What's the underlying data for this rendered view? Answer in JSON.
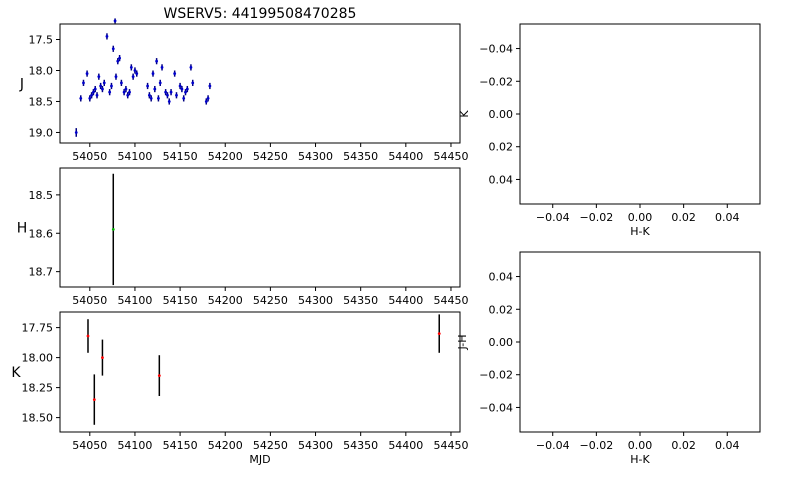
{
  "title": "WSERV5: 44199508470285",
  "chart_data": [
    {
      "id": "J",
      "type": "scatter",
      "ylabel": "J",
      "xlabel": "",
      "y_inverted": true,
      "xlim": [
        54017,
        54460
      ],
      "ylim": [
        19.17,
        17.25
      ],
      "xticks": [
        54050,
        54100,
        54150,
        54200,
        54250,
        54300,
        54350,
        54400,
        54450
      ],
      "yticks": [
        17.5,
        18.0,
        18.5,
        19.0
      ],
      "marker_color": "#0000cc",
      "errbar_color": "#000080",
      "points": [
        {
          "x": 54035,
          "y": 19.0,
          "e": 0.07
        },
        {
          "x": 54040,
          "y": 18.45,
          "e": 0.05
        },
        {
          "x": 54043,
          "y": 18.2,
          "e": 0.05
        },
        {
          "x": 54047,
          "y": 18.05,
          "e": 0.05
        },
        {
          "x": 54050,
          "y": 18.45,
          "e": 0.05
        },
        {
          "x": 54052,
          "y": 18.4,
          "e": 0.05
        },
        {
          "x": 54054,
          "y": 18.35,
          "e": 0.05
        },
        {
          "x": 54056,
          "y": 18.3,
          "e": 0.05
        },
        {
          "x": 54058,
          "y": 18.4,
          "e": 0.05
        },
        {
          "x": 54060,
          "y": 18.1,
          "e": 0.05
        },
        {
          "x": 54062,
          "y": 18.25,
          "e": 0.05
        },
        {
          "x": 54064,
          "y": 18.3,
          "e": 0.05
        },
        {
          "x": 54066,
          "y": 18.2,
          "e": 0.05
        },
        {
          "x": 54069,
          "y": 17.45,
          "e": 0.05
        },
        {
          "x": 54072,
          "y": 18.35,
          "e": 0.05
        },
        {
          "x": 54074,
          "y": 18.25,
          "e": 0.05
        },
        {
          "x": 54076,
          "y": 17.65,
          "e": 0.05
        },
        {
          "x": 54078,
          "y": 17.2,
          "e": 0.04
        },
        {
          "x": 54079,
          "y": 18.1,
          "e": 0.05
        },
        {
          "x": 54081,
          "y": 17.85,
          "e": 0.05
        },
        {
          "x": 54083,
          "y": 17.8,
          "e": 0.05
        },
        {
          "x": 54085,
          "y": 18.2,
          "e": 0.05
        },
        {
          "x": 54088,
          "y": 18.35,
          "e": 0.05
        },
        {
          "x": 54090,
          "y": 18.3,
          "e": 0.05
        },
        {
          "x": 54092,
          "y": 18.4,
          "e": 0.05
        },
        {
          "x": 54094,
          "y": 18.35,
          "e": 0.05
        },
        {
          "x": 54096,
          "y": 17.95,
          "e": 0.05
        },
        {
          "x": 54098,
          "y": 18.1,
          "e": 0.05
        },
        {
          "x": 54100,
          "y": 18.0,
          "e": 0.05
        },
        {
          "x": 54102,
          "y": 18.05,
          "e": 0.05
        },
        {
          "x": 54114,
          "y": 18.25,
          "e": 0.05
        },
        {
          "x": 54116,
          "y": 18.4,
          "e": 0.05
        },
        {
          "x": 54118,
          "y": 18.45,
          "e": 0.05
        },
        {
          "x": 54120,
          "y": 18.05,
          "e": 0.05
        },
        {
          "x": 54122,
          "y": 18.3,
          "e": 0.05
        },
        {
          "x": 54124,
          "y": 17.85,
          "e": 0.05
        },
        {
          "x": 54126,
          "y": 18.45,
          "e": 0.05
        },
        {
          "x": 54128,
          "y": 18.2,
          "e": 0.05
        },
        {
          "x": 54130,
          "y": 17.95,
          "e": 0.05
        },
        {
          "x": 54134,
          "y": 18.35,
          "e": 0.05
        },
        {
          "x": 54136,
          "y": 18.4,
          "e": 0.05
        },
        {
          "x": 54138,
          "y": 18.5,
          "e": 0.05
        },
        {
          "x": 54140,
          "y": 18.35,
          "e": 0.05
        },
        {
          "x": 54144,
          "y": 18.05,
          "e": 0.05
        },
        {
          "x": 54146,
          "y": 18.4,
          "e": 0.05
        },
        {
          "x": 54150,
          "y": 18.25,
          "e": 0.05
        },
        {
          "x": 54152,
          "y": 18.3,
          "e": 0.05
        },
        {
          "x": 54154,
          "y": 18.45,
          "e": 0.05
        },
        {
          "x": 54156,
          "y": 18.35,
          "e": 0.05
        },
        {
          "x": 54158,
          "y": 18.3,
          "e": 0.05
        },
        {
          "x": 54162,
          "y": 17.95,
          "e": 0.05
        },
        {
          "x": 54164,
          "y": 18.2,
          "e": 0.05
        },
        {
          "x": 54179,
          "y": 18.5,
          "e": 0.05
        },
        {
          "x": 54181,
          "y": 18.45,
          "e": 0.05
        },
        {
          "x": 54183,
          "y": 18.25,
          "e": 0.05
        }
      ]
    },
    {
      "id": "H",
      "type": "scatter",
      "ylabel": "H",
      "xlabel": "",
      "y_inverted": true,
      "xlim": [
        54017,
        54460
      ],
      "ylim": [
        18.74,
        18.43
      ],
      "xticks": [
        54050,
        54100,
        54150,
        54200,
        54250,
        54300,
        54350,
        54400,
        54450
      ],
      "yticks": [
        18.5,
        18.6,
        18.7
      ],
      "marker_color": "#00aa00",
      "errbar_color": "#000000",
      "points": [
        {
          "x": 54076,
          "y": 18.59,
          "e": 0.145
        }
      ]
    },
    {
      "id": "K",
      "type": "scatter",
      "ylabel": "K",
      "xlabel": "MJD",
      "y_inverted": true,
      "xlim": [
        54017,
        54460
      ],
      "ylim": [
        18.62,
        17.62
      ],
      "xticks": [
        54050,
        54100,
        54150,
        54200,
        54250,
        54300,
        54350,
        54400,
        54450
      ],
      "yticks": [
        17.75,
        18.0,
        18.25,
        18.5
      ],
      "marker_color": "#ff0000",
      "errbar_color": "#000000",
      "points": [
        {
          "x": 54048,
          "y": 17.82,
          "e": 0.14
        },
        {
          "x": 54055,
          "y": 18.35,
          "e": 0.21
        },
        {
          "x": 54064,
          "y": 18.0,
          "e": 0.15
        },
        {
          "x": 54127,
          "y": 18.15,
          "e": 0.17
        },
        {
          "x": 54437,
          "y": 17.8,
          "e": 0.16
        }
      ]
    },
    {
      "id": "HK-K",
      "type": "scatter",
      "ylabel": "K",
      "xlabel": "H-K",
      "y_inverted": true,
      "xlim": [
        -0.055,
        0.055
      ],
      "ylim": [
        0.055,
        -0.055
      ],
      "xticks": [
        -0.04,
        -0.02,
        0.0,
        0.02,
        0.04
      ],
      "yticks": [
        -0.04,
        -0.02,
        0.0,
        0.02,
        0.04
      ],
      "xtick_labels": [
        "−0.04",
        "−0.02",
        "0.00",
        "0.02",
        "0.04"
      ],
      "ytick_labels": [
        "−0.04",
        "−0.02",
        "0.00",
        "0.02",
        "0.04"
      ],
      "points": []
    },
    {
      "id": "HK-JH",
      "type": "scatter",
      "ylabel": "J-H",
      "xlabel": "H-K",
      "y_inverted": false,
      "xlim": [
        -0.055,
        0.055
      ],
      "ylim": [
        -0.055,
        0.055
      ],
      "xticks": [
        -0.04,
        -0.02,
        0.0,
        0.02,
        0.04
      ],
      "yticks": [
        -0.04,
        -0.02,
        0.0,
        0.02,
        0.04
      ],
      "xtick_labels": [
        "−0.04",
        "−0.02",
        "0.00",
        "0.02",
        "0.04"
      ],
      "ytick_labels": [
        "−0.04",
        "−0.02",
        "0.00",
        "0.02",
        "0.04"
      ],
      "points": []
    }
  ]
}
